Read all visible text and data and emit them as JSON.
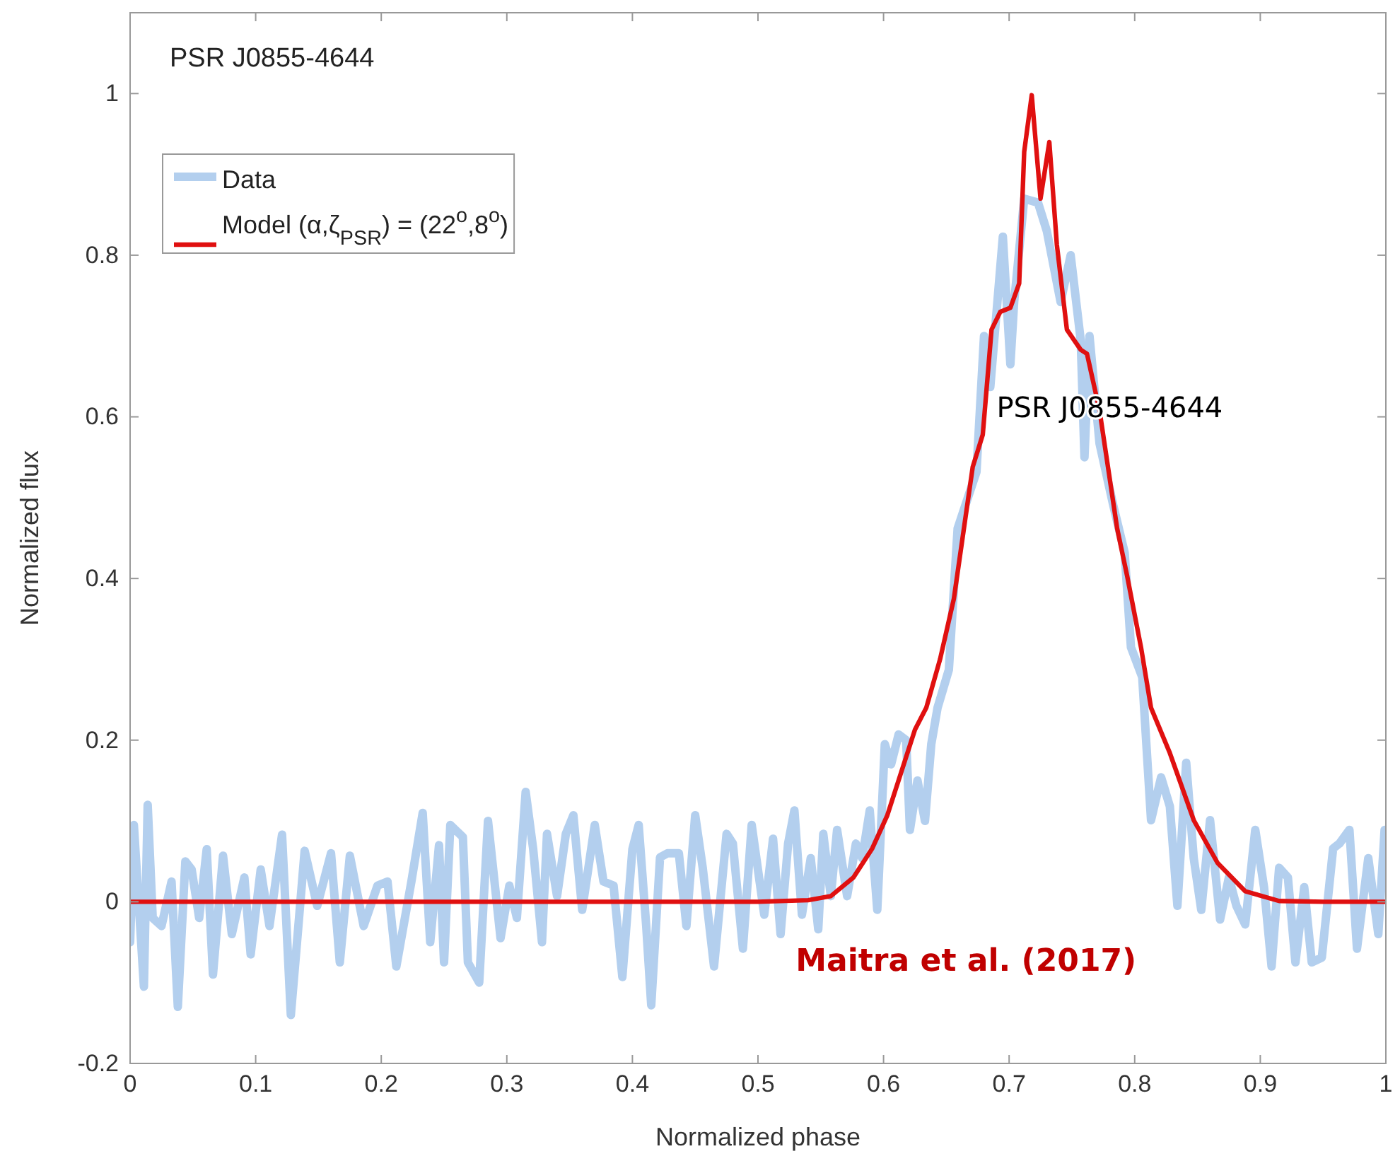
{
  "chart_data": {
    "type": "line",
    "xlabel": "Normalized phase",
    "ylabel": "Normalized flux",
    "xlim": [
      0,
      1
    ],
    "ylim": [
      -0.2,
      1.1
    ],
    "xticks": [
      0,
      0.1,
      0.2,
      0.3,
      0.4,
      0.5,
      0.6,
      0.7,
      0.8,
      0.9,
      1
    ],
    "yticks": [
      -0.2,
      0,
      0.2,
      0.4,
      0.6,
      0.8,
      1
    ],
    "legend": "top left",
    "grid": false,
    "annotations": [
      "PSR J0855-4644",
      "PSR J0855-4644",
      "Maitra et al. (2017)"
    ],
    "series": [
      {
        "name": "Data",
        "color": "#b3cfee",
        "x": [
          0.0,
          0.003,
          0.011,
          0.014,
          0.018,
          0.025,
          0.033,
          0.038,
          0.044,
          0.049,
          0.055,
          0.061,
          0.066,
          0.074,
          0.081,
          0.091,
          0.096,
          0.104,
          0.111,
          0.121,
          0.128,
          0.134,
          0.139,
          0.149,
          0.16,
          0.167,
          0.175,
          0.186,
          0.197,
          0.205,
          0.212,
          0.224,
          0.233,
          0.239,
          0.246,
          0.25,
          0.255,
          0.265,
          0.269,
          0.278,
          0.285,
          0.295,
          0.302,
          0.308,
          0.315,
          0.321,
          0.328,
          0.332,
          0.34,
          0.347,
          0.353,
          0.36,
          0.37,
          0.377,
          0.385,
          0.392,
          0.4,
          0.405,
          0.411,
          0.415,
          0.422,
          0.428,
          0.437,
          0.443,
          0.45,
          0.456,
          0.465,
          0.475,
          0.48,
          0.488,
          0.495,
          0.505,
          0.512,
          0.518,
          0.524,
          0.529,
          0.535,
          0.542,
          0.548,
          0.552,
          0.558,
          0.563,
          0.571,
          0.578,
          0.583,
          0.589,
          0.595,
          0.601,
          0.606,
          0.612,
          0.618,
          0.621,
          0.627,
          0.633,
          0.638,
          0.643,
          0.652,
          0.659,
          0.674,
          0.68,
          0.685,
          0.695,
          0.701,
          0.704,
          0.712,
          0.723,
          0.73,
          0.741,
          0.749,
          0.757,
          0.76,
          0.764,
          0.772,
          0.783,
          0.792,
          0.797,
          0.806,
          0.813,
          0.821,
          0.828,
          0.834,
          0.841,
          0.847,
          0.853,
          0.86,
          0.868,
          0.875,
          0.881,
          0.888,
          0.896,
          0.903,
          0.909,
          0.915,
          0.922,
          0.928,
          0.935,
          0.941,
          0.949,
          0.958,
          0.963,
          0.971,
          0.977,
          0.986,
          0.994,
          0.999
        ],
        "values": [
          -0.05,
          0.095,
          -0.105,
          0.12,
          -0.02,
          -0.03,
          0.025,
          -0.13,
          0.05,
          0.04,
          -0.02,
          0.065,
          -0.09,
          0.057,
          -0.04,
          0.03,
          -0.065,
          0.04,
          -0.03,
          0.083,
          -0.14,
          -0.03,
          0.063,
          -0.005,
          0.06,
          -0.075,
          0.057,
          -0.03,
          0.02,
          0.025,
          -0.08,
          0.025,
          0.11,
          -0.05,
          0.07,
          -0.075,
          0.095,
          0.08,
          -0.075,
          -0.1,
          0.1,
          -0.045,
          0.02,
          -0.02,
          0.136,
          0.065,
          -0.05,
          0.084,
          0.007,
          0.084,
          0.107,
          -0.01,
          0.095,
          0.025,
          0.02,
          -0.093,
          0.065,
          0.095,
          -0.03,
          -0.128,
          0.055,
          0.06,
          0.06,
          -0.03,
          0.107,
          0.042,
          -0.08,
          0.084,
          0.072,
          -0.058,
          0.095,
          -0.016,
          0.078,
          -0.04,
          0.072,
          0.113,
          -0.016,
          0.054,
          -0.034,
          0.084,
          0.007,
          0.089,
          0.007,
          0.072,
          0.054,
          0.113,
          -0.01,
          0.195,
          0.17,
          0.207,
          0.2,
          0.089,
          0.15,
          0.1,
          0.195,
          0.24,
          0.287,
          0.462,
          0.532,
          0.7,
          0.637,
          0.823,
          0.665,
          0.742,
          0.87,
          0.865,
          0.83,
          0.742,
          0.8,
          0.695,
          0.55,
          0.7,
          0.567,
          0.49,
          0.432,
          0.315,
          0.278,
          0.101,
          0.154,
          0.118,
          -0.005,
          0.172,
          0.054,
          -0.01,
          0.101,
          -0.022,
          0.03,
          -0.005,
          -0.028,
          0.089,
          0.018,
          -0.08,
          0.042,
          0.03,
          -0.075,
          0.018,
          -0.075,
          -0.069,
          0.066,
          0.072,
          0.089,
          -0.058,
          0.054,
          -0.04,
          0.089
        ]
      },
      {
        "name": "Model (α,ζ$_{PSR}$) = (22$^{o}$,8$^{o}$)",
        "color": "#e01010",
        "x": [
          0,
          0.5,
          0.54,
          0.558,
          0.576,
          0.591,
          0.603,
          0.614,
          0.625,
          0.634,
          0.645,
          0.656,
          0.671,
          0.679,
          0.686,
          0.693,
          0.701,
          0.708,
          0.712,
          0.718,
          0.725,
          0.732,
          0.738,
          0.746,
          0.757,
          0.762,
          0.772,
          0.786,
          0.794,
          0.805,
          0.813,
          0.828,
          0.847,
          0.866,
          0.888,
          0.915,
          0.95,
          1
        ],
        "values": [
          0,
          0,
          0.002,
          0.007,
          0.03,
          0.066,
          0.107,
          0.16,
          0.213,
          0.24,
          0.3,
          0.375,
          0.538,
          0.578,
          0.708,
          0.73,
          0.735,
          0.765,
          0.928,
          0.998,
          0.87,
          0.94,
          0.813,
          0.708,
          0.683,
          0.678,
          0.608,
          0.462,
          0.403,
          0.315,
          0.24,
          0.184,
          0.101,
          0.048,
          0.013,
          0.001,
          0,
          0
        ]
      }
    ]
  }
}
